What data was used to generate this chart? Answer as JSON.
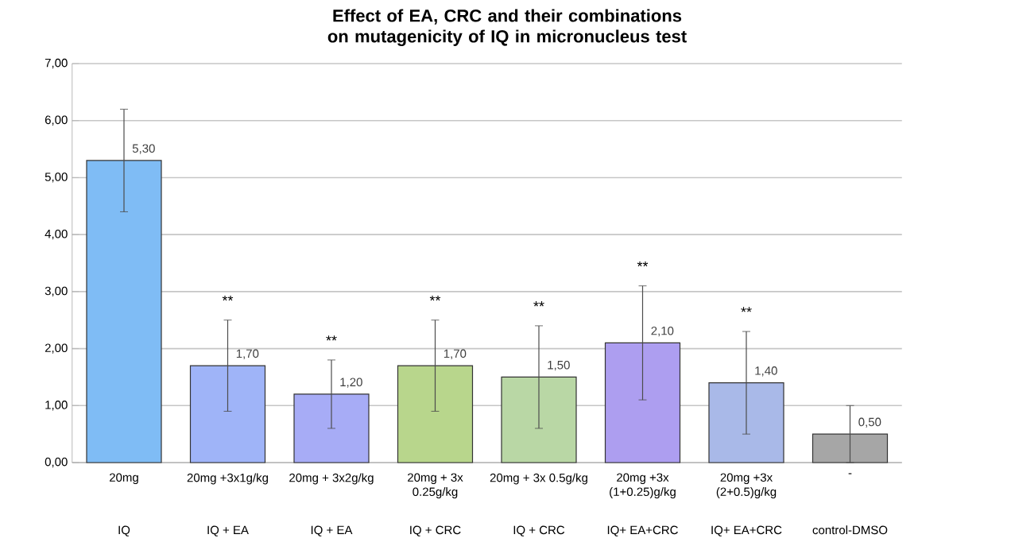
{
  "chart_data": {
    "type": "bar",
    "title": "Effect of EA, CRC and their combinations on mutagenicity of IQ in micronucleus test",
    "categories": [
      "20mg",
      "20mg +3x1g/kg",
      "20mg + 3x2g/kg",
      "20mg + 3x 0.25g/kg",
      "20mg + 3x 0.5g/kg",
      "20mg +3x (1+0.25)g/kg",
      "20mg +3x (2+0.5)g/kg",
      "-"
    ],
    "values": [
      5.3,
      1.7,
      1.2,
      1.7,
      1.5,
      2.1,
      1.4,
      0.5
    ],
    "errors": [
      0.9,
      0.8,
      0.6,
      0.8,
      0.9,
      1.0,
      0.9,
      0.5
    ],
    "value_labels": [
      "5,30",
      "1,70",
      "1,20",
      "1,70",
      "1,50",
      "2,10",
      "1,40",
      "0,50"
    ],
    "colors": [
      "#7fbcf5",
      "#9fb4f8",
      "#a7acf6",
      "#b8d68c",
      "#b9d7a5",
      "#ad9ef0",
      "#a9b9e8",
      "#a6a6a6"
    ],
    "ylim": [
      0,
      7
    ],
    "yticks": [
      {
        "value": 0,
        "label": "0,00"
      },
      {
        "value": 1,
        "label": "1,00"
      },
      {
        "value": 2,
        "label": "2,00"
      },
      {
        "value": 3,
        "label": "3,00"
      },
      {
        "value": 4,
        "label": "4,00"
      },
      {
        "value": 5,
        "label": "5,00"
      },
      {
        "value": 6,
        "label": "6,00"
      },
      {
        "value": 7,
        "label": "7,00"
      }
    ],
    "grid": "y",
    "annotations": [
      "IQ",
      "IQ + EA",
      "IQ + EA",
      "IQ + CRC",
      "IQ + CRC",
      "IQ+ EA+CRC",
      "IQ+ EA+CRC",
      "control-DMSO",
      {
        "text": "**",
        "x": "20mg +3x1g/kg",
        "y": 2.5
      },
      {
        "text": "**",
        "x": "20mg + 3x2g/kg",
        "y": 1.8
      },
      {
        "text": "**",
        "x": "20mg + 3x 0.25g/kg",
        "y": 2.5
      },
      {
        "text": "**",
        "x": "20mg + 3x 0.5g/kg",
        "y": 2.4
      },
      {
        "text": "**",
        "x": "20mg +3x (1+0.25)g/kg",
        "y": 3.1
      },
      {
        "text": "**",
        "x": "20mg +3x (2+0.5)g/kg",
        "y": 2.3
      }
    ]
  }
}
